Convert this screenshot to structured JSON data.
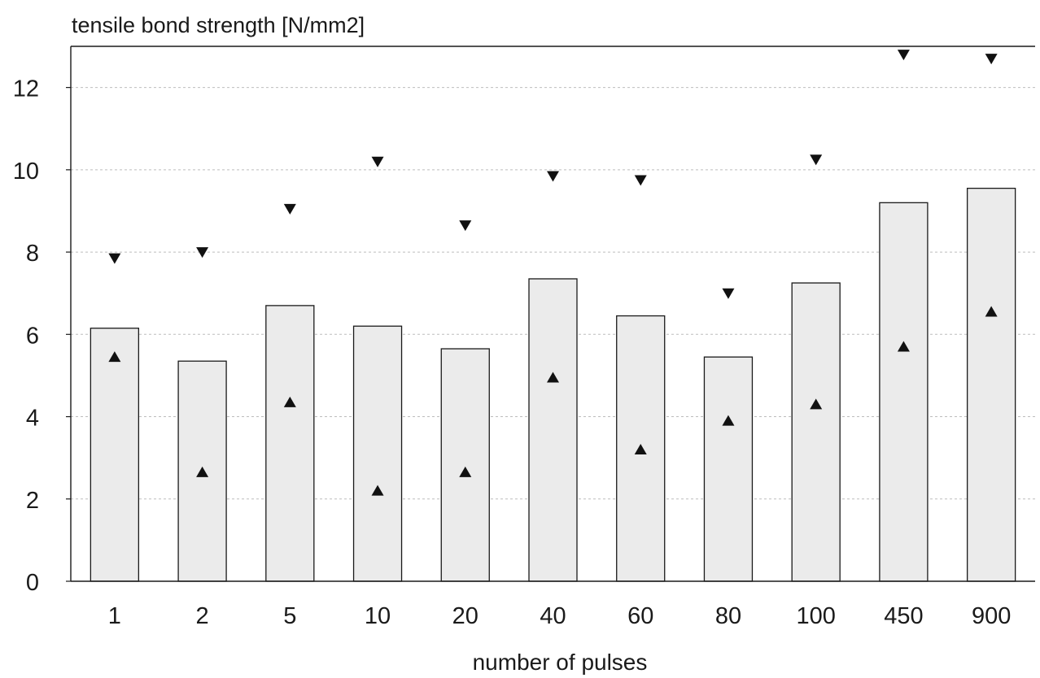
{
  "chart_data": {
    "type": "bar",
    "title": "",
    "ylabel": "tensile bond strength [N/mm2]",
    "xlabel": "number of pulses",
    "categories": [
      "1",
      "2",
      "5",
      "10",
      "20",
      "40",
      "60",
      "80",
      "100",
      "450",
      "900"
    ],
    "series": [
      {
        "kind": "bar",
        "values": [
          6.15,
          5.35,
          6.7,
          6.2,
          5.65,
          7.35,
          6.45,
          5.45,
          7.25,
          9.2,
          9.55
        ]
      },
      {
        "kind": "marker-up",
        "values": [
          5.45,
          2.65,
          4.35,
          2.2,
          2.65,
          4.95,
          3.2,
          3.9,
          4.3,
          5.7,
          6.55
        ]
      },
      {
        "kind": "marker-down",
        "values": [
          7.85,
          8.0,
          9.05,
          10.2,
          8.65,
          9.85,
          9.75,
          7.0,
          10.25,
          12.8,
          12.7
        ]
      }
    ],
    "ylim": [
      0,
      13
    ],
    "yticks": [
      0,
      2,
      4,
      6,
      8,
      10,
      12
    ],
    "grid": "horizontal-dashed",
    "legend": "none",
    "colors": {
      "bar_fill": "#ebebeb",
      "bar_stroke": "#1a1a1a",
      "marker": "#111111",
      "grid": "#bdbdbd",
      "axis": "#1a1a1a"
    }
  }
}
